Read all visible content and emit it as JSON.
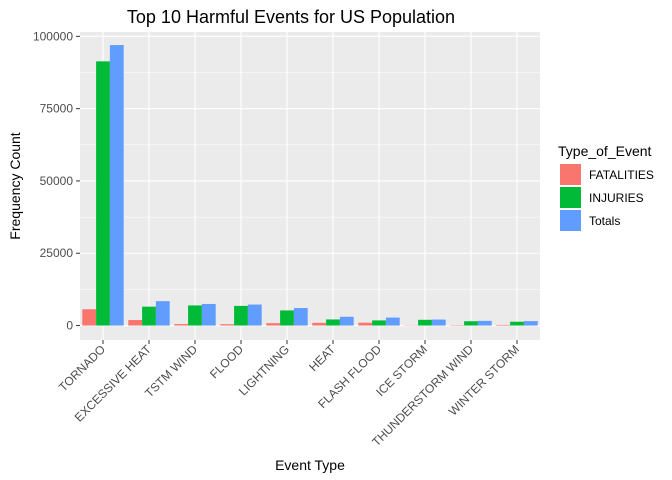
{
  "chart_data": {
    "type": "bar",
    "title": "Top 10 Harmful Events for US Population",
    "xlabel": "Event Type",
    "ylabel": "Frequency Count",
    "ylim": [
      -5000,
      101500
    ],
    "yticks": [
      0,
      25000,
      50000,
      75000,
      100000
    ],
    "ytick_labels": [
      "0",
      "25000",
      "50000",
      "75000",
      "100000"
    ],
    "grid": true,
    "legend_position": "right",
    "legend_title": "Type_of_Event",
    "categories": [
      "TORNADO",
      "EXCESSIVE HEAT",
      "TSTM WIND",
      "FLOOD",
      "LIGHTNING",
      "HEAT",
      "FLASH FLOOD",
      "ICE STORM",
      "THUNDERSTORM WIND",
      "WINTER STORM"
    ],
    "series": [
      {
        "name": "FATALITIES",
        "color": "#F8766D",
        "values": [
          5633,
          1903,
          504,
          470,
          816,
          937,
          978,
          89,
          133,
          206
        ]
      },
      {
        "name": "INJURIES",
        "color": "#00BA38",
        "values": [
          91346,
          6525,
          6957,
          6789,
          5230,
          2100,
          1777,
          1975,
          1488,
          1321
        ]
      },
      {
        "name": "Totals",
        "color": "#619CFF",
        "values": [
          96979,
          8428,
          7461,
          7259,
          6046,
          3037,
          2755,
          2064,
          1621,
          1527
        ]
      }
    ]
  }
}
